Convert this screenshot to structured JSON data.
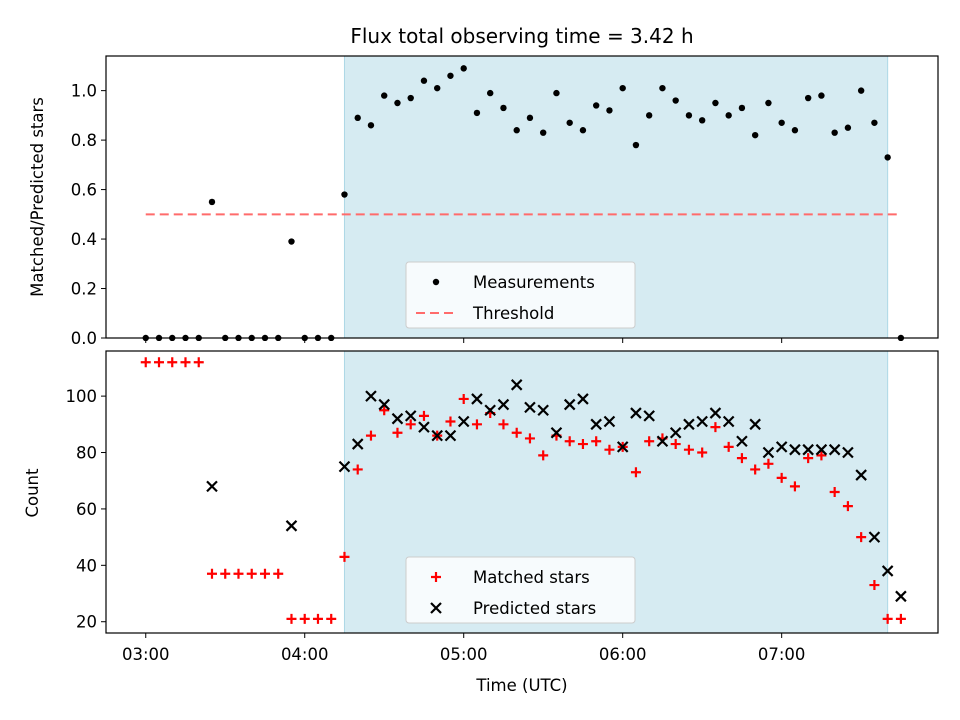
{
  "title": "Flux total observing time = 3.42 h",
  "colors": {
    "shade": "#add8e6",
    "threshold": "#ff6b6b",
    "measurements": "#000000",
    "matched": "#ff0000",
    "predicted": "#000000"
  },
  "chart_data": [
    {
      "type": "scatter",
      "panel": "top",
      "xlabel": "",
      "ylabel": "Matched/Predicted stars",
      "xlim": [
        "02:45",
        "07:59"
      ],
      "ylim": [
        0,
        1.14
      ],
      "yticks": [
        "0.0",
        "0.2",
        "0.4",
        "0.6",
        "0.8",
        "1.0"
      ],
      "shaded_region": [
        "04:15",
        "07:40"
      ],
      "threshold": {
        "name": "Threshold",
        "y": 0.5,
        "x_range": [
          "03:00",
          "07:45"
        ],
        "style": "dashed"
      },
      "legend": {
        "position": "lower-center",
        "entries": [
          "Measurements",
          "Threshold"
        ]
      },
      "series": [
        {
          "name": "Measurements",
          "marker": "dot",
          "points": [
            [
              "03:00",
              0
            ],
            [
              "03:05",
              0
            ],
            [
              "03:10",
              0
            ],
            [
              "03:15",
              0
            ],
            [
              "03:20",
              0
            ],
            [
              "03:25",
              0.55
            ],
            [
              "03:30",
              0
            ],
            [
              "03:35",
              0
            ],
            [
              "03:40",
              0
            ],
            [
              "03:45",
              0
            ],
            [
              "03:50",
              0
            ],
            [
              "03:55",
              0.39
            ],
            [
              "04:00",
              0
            ],
            [
              "04:05",
              0
            ],
            [
              "04:10",
              0
            ],
            [
              "04:15",
              0.58
            ],
            [
              "04:20",
              0.89
            ],
            [
              "04:25",
              0.86
            ],
            [
              "04:30",
              0.98
            ],
            [
              "04:35",
              0.95
            ],
            [
              "04:40",
              0.97
            ],
            [
              "04:45",
              1.04
            ],
            [
              "04:50",
              1.01
            ],
            [
              "04:55",
              1.06
            ],
            [
              "05:00",
              1.09
            ],
            [
              "05:05",
              0.91
            ],
            [
              "05:10",
              0.99
            ],
            [
              "05:15",
              0.93
            ],
            [
              "05:20",
              0.84
            ],
            [
              "05:25",
              0.89
            ],
            [
              "05:30",
              0.83
            ],
            [
              "05:35",
              0.99
            ],
            [
              "05:40",
              0.87
            ],
            [
              "05:45",
              0.84
            ],
            [
              "05:50",
              0.94
            ],
            [
              "05:55",
              0.92
            ],
            [
              "06:00",
              1.01
            ],
            [
              "06:05",
              0.78
            ],
            [
              "06:10",
              0.9
            ],
            [
              "06:15",
              1.01
            ],
            [
              "06:20",
              0.96
            ],
            [
              "06:25",
              0.9
            ],
            [
              "06:30",
              0.88
            ],
            [
              "06:35",
              0.95
            ],
            [
              "06:40",
              0.9
            ],
            [
              "06:45",
              0.93
            ],
            [
              "06:50",
              0.82
            ],
            [
              "06:55",
              0.95
            ],
            [
              "07:00",
              0.87
            ],
            [
              "07:05",
              0.84
            ],
            [
              "07:10",
              0.97
            ],
            [
              "07:15",
              0.98
            ],
            [
              "07:20",
              0.83
            ],
            [
              "07:25",
              0.85
            ],
            [
              "07:30",
              1.0
            ],
            [
              "07:35",
              0.87
            ],
            [
              "07:40",
              0.73
            ],
            [
              "07:45",
              0
            ]
          ]
        }
      ]
    },
    {
      "type": "scatter",
      "panel": "bottom",
      "xlabel": "Time (UTC)",
      "ylabel": "Count",
      "xlim": [
        "02:45",
        "07:59"
      ],
      "ylim": [
        16,
        116
      ],
      "yticks": [
        "20",
        "40",
        "60",
        "80",
        "100"
      ],
      "xticks": [
        "03:00",
        "04:00",
        "05:00",
        "06:00",
        "07:00"
      ],
      "shaded_region": [
        "04:15",
        "07:40"
      ],
      "legend": {
        "position": "lower-center",
        "entries": [
          "Matched stars",
          "Predicted stars"
        ]
      },
      "series": [
        {
          "name": "Matched stars",
          "marker": "plus",
          "points": [
            [
              "03:00",
              112
            ],
            [
              "03:05",
              112
            ],
            [
              "03:10",
              112
            ],
            [
              "03:15",
              112
            ],
            [
              "03:20",
              112
            ],
            [
              "03:25",
              37
            ],
            [
              "03:30",
              37
            ],
            [
              "03:35",
              37
            ],
            [
              "03:40",
              37
            ],
            [
              "03:45",
              37
            ],
            [
              "03:50",
              37
            ],
            [
              "03:55",
              21
            ],
            [
              "04:00",
              21
            ],
            [
              "04:05",
              21
            ],
            [
              "04:10",
              21
            ],
            [
              "04:15",
              43
            ],
            [
              "04:20",
              74
            ],
            [
              "04:25",
              86
            ],
            [
              "04:30",
              95
            ],
            [
              "04:35",
              87
            ],
            [
              "04:40",
              90
            ],
            [
              "04:45",
              93
            ],
            [
              "04:50",
              86
            ],
            [
              "04:55",
              91
            ],
            [
              "05:00",
              99
            ],
            [
              "05:05",
              90
            ],
            [
              "05:10",
              94
            ],
            [
              "05:15",
              90
            ],
            [
              "05:20",
              87
            ],
            [
              "05:25",
              85
            ],
            [
              "05:30",
              79
            ],
            [
              "05:35",
              86
            ],
            [
              "05:40",
              84
            ],
            [
              "05:45",
              83
            ],
            [
              "05:50",
              84
            ],
            [
              "05:55",
              81
            ],
            [
              "06:00",
              82
            ],
            [
              "06:05",
              73
            ],
            [
              "06:10",
              84
            ],
            [
              "06:15",
              85
            ],
            [
              "06:20",
              83
            ],
            [
              "06:25",
              81
            ],
            [
              "06:30",
              80
            ],
            [
              "06:35",
              89
            ],
            [
              "06:40",
              82
            ],
            [
              "06:45",
              78
            ],
            [
              "06:50",
              74
            ],
            [
              "06:55",
              76
            ],
            [
              "07:00",
              71
            ],
            [
              "07:05",
              68
            ],
            [
              "07:10",
              78
            ],
            [
              "07:15",
              79
            ],
            [
              "07:20",
              66
            ],
            [
              "07:25",
              61
            ],
            [
              "07:30",
              50
            ],
            [
              "07:35",
              33
            ],
            [
              "07:40",
              21
            ],
            [
              "07:45",
              21
            ]
          ]
        },
        {
          "name": "Predicted stars",
          "marker": "x",
          "points": [
            [
              "03:25",
              68
            ],
            [
              "03:55",
              54
            ],
            [
              "04:15",
              75
            ],
            [
              "04:20",
              83
            ],
            [
              "04:25",
              100
            ],
            [
              "04:30",
              97
            ],
            [
              "04:35",
              92
            ],
            [
              "04:40",
              93
            ],
            [
              "04:45",
              89
            ],
            [
              "04:50",
              86
            ],
            [
              "04:55",
              86
            ],
            [
              "05:00",
              91
            ],
            [
              "05:05",
              99
            ],
            [
              "05:10",
              95
            ],
            [
              "05:15",
              97
            ],
            [
              "05:20",
              104
            ],
            [
              "05:25",
              96
            ],
            [
              "05:30",
              95
            ],
            [
              "05:35",
              87
            ],
            [
              "05:40",
              97
            ],
            [
              "05:45",
              99
            ],
            [
              "05:50",
              90
            ],
            [
              "05:55",
              91
            ],
            [
              "06:00",
              82
            ],
            [
              "06:05",
              94
            ],
            [
              "06:10",
              93
            ],
            [
              "06:15",
              84
            ],
            [
              "06:20",
              87
            ],
            [
              "06:25",
              90
            ],
            [
              "06:30",
              91
            ],
            [
              "06:35",
              94
            ],
            [
              "06:40",
              91
            ],
            [
              "06:45",
              84
            ],
            [
              "06:50",
              90
            ],
            [
              "06:55",
              80
            ],
            [
              "07:00",
              82
            ],
            [
              "07:05",
              81
            ],
            [
              "07:10",
              81
            ],
            [
              "07:15",
              81
            ],
            [
              "07:20",
              81
            ],
            [
              "07:25",
              80
            ],
            [
              "07:30",
              72
            ],
            [
              "07:35",
              50
            ],
            [
              "07:40",
              38
            ],
            [
              "07:45",
              29
            ]
          ]
        }
      ]
    }
  ]
}
